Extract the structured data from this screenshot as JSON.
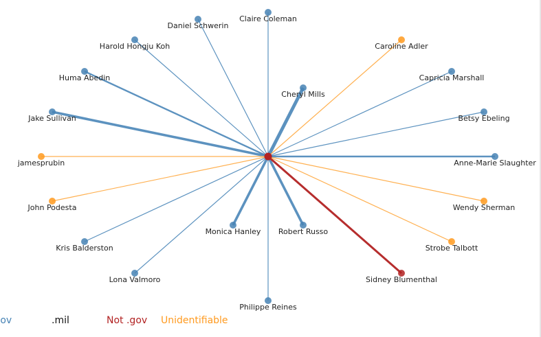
{
  "center": {
    "name": "",
    "category": "notgov"
  },
  "colors": {
    "gov": "#4682b4",
    "notgov": "#b22222",
    "unidentifiable": "#ff9a1f",
    "mil": "#111111",
    "label": "#222222"
  },
  "legend": [
    {
      "label": ".gov",
      "category": "gov"
    },
    {
      "label": ".mil",
      "category": "mil"
    },
    {
      "label": "Not .gov",
      "category": "notgov"
    },
    {
      "label": "Unidentifiable",
      "category": "unidentifiable"
    }
  ],
  "nodes": [
    {
      "name": "Claire Coleman",
      "category": "gov",
      "weight": 1
    },
    {
      "name": "Daniel Schwerin",
      "category": "gov",
      "weight": 1
    },
    {
      "name": "Harold Hongju Koh",
      "category": "gov",
      "weight": 1
    },
    {
      "name": "Huma Abedin",
      "category": "gov",
      "weight": 2
    },
    {
      "name": "Jake Sullivan",
      "category": "gov",
      "weight": 3
    },
    {
      "name": "jamesprubin",
      "category": "unidentifiable",
      "weight": 1
    },
    {
      "name": "John Podesta",
      "category": "unidentifiable",
      "weight": 1
    },
    {
      "name": "Kris Balderston",
      "category": "gov",
      "weight": 1
    },
    {
      "name": "Lona Valmoro",
      "category": "gov",
      "weight": 1
    },
    {
      "name": "Philippe Reines",
      "category": "gov",
      "weight": 1
    },
    {
      "name": "Monica Hanley",
      "category": "gov",
      "weight": 3
    },
    {
      "name": "Robert Russo",
      "category": "gov",
      "weight": 3
    },
    {
      "name": "Sidney Blumenthal",
      "category": "notgov",
      "weight": 2.5
    },
    {
      "name": "Strobe Talbott",
      "category": "unidentifiable",
      "weight": 1
    },
    {
      "name": "Wendy Sherman",
      "category": "unidentifiable",
      "weight": 1
    },
    {
      "name": "Anne-Marie Slaughter",
      "category": "gov",
      "weight": 2
    },
    {
      "name": "Betsy Ebeling",
      "category": "gov",
      "weight": 1
    },
    {
      "name": "Capricia Marshall",
      "category": "gov",
      "weight": 1
    },
    {
      "name": "Cheryl Mills",
      "category": "gov",
      "weight": 4
    },
    {
      "name": "Caroline Adler",
      "category": "unidentifiable",
      "weight": 1
    }
  ]
}
